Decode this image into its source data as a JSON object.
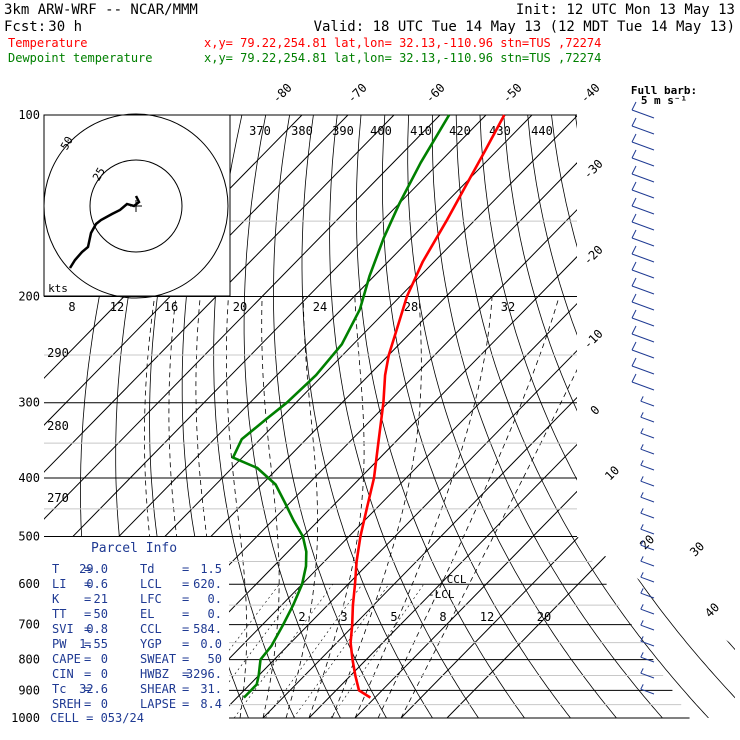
{
  "header": {
    "model": "3km ARW-WRF -- NCAR/MMM",
    "init": "Init: 12 UTC Mon 13 May 13",
    "fcst_label": "Fcst:",
    "fcst_value": "30 h",
    "valid": "Valid: 18 UTC Tue 14 May 13 (12 MDT Tue 14 May 13)",
    "temp_label": "Temperature",
    "dew_label": "Dewpoint temperature",
    "temp_loc": "x,y= 79.22,254.81   lat,lon= 32.13,-110.96  stn=TUS ,72274",
    "dew_loc": "x,y= 79.22,254.81   lat,lon= 32.13,-110.96  stn=TUS ,72274",
    "barb_key_1": "Full barb:",
    "barb_key_2": "5 m s⁻¹"
  },
  "colors": {
    "temperature": "#ff0000",
    "dewpoint": "#008000",
    "wind": "#1f3a93",
    "hodograph": "#000000"
  },
  "chart_data": {
    "type": "line",
    "chart_kind": "skew-T log-p sounding",
    "y_scale": "log",
    "ylim": [
      1000,
      100
    ],
    "pressure_ticks": [
      "100",
      "200",
      "300",
      "400",
      "500",
      "600",
      "700",
      "800",
      "900",
      "1000"
    ],
    "pressure_ticks_values": [
      100,
      200,
      300,
      400,
      500,
      600,
      700,
      800,
      900,
      1000
    ],
    "isotherm_labels": [
      "-80",
      "-70",
      "-60",
      "-50",
      "-40",
      "-30",
      "-20",
      "-10",
      "0",
      "10",
      "20",
      "30",
      "40"
    ],
    "isotherm_values": [
      -80,
      -70,
      -60,
      -50,
      -40,
      -30,
      -20,
      -10,
      0,
      10,
      20,
      30,
      40
    ],
    "theta_labels": [
      "290",
      "280",
      "270"
    ],
    "theta_values": [
      290,
      280,
      270
    ],
    "mixing_ratio_labels": [
      "2",
      "3",
      "5",
      "8",
      "12",
      "20"
    ],
    "mixing_ratio_values": [
      2,
      3,
      5,
      8,
      12,
      20
    ],
    "series": [
      {
        "name": "Temperature",
        "color": "#ff0000",
        "points": [
          {
            "p": 925,
            "t": 29.0
          },
          {
            "p": 900,
            "t": 25.0
          },
          {
            "p": 850,
            "t": 21.0
          },
          {
            "p": 800,
            "t": 17.0
          },
          {
            "p": 750,
            "t": 13.0
          },
          {
            "p": 700,
            "t": 9.5
          },
          {
            "p": 650,
            "t": 5.5
          },
          {
            "p": 600,
            "t": 1.5
          },
          {
            "p": 550,
            "t": -3.0
          },
          {
            "p": 500,
            "t": -7.5
          },
          {
            "p": 450,
            "t": -12.0
          },
          {
            "p": 400,
            "t": -17.0
          },
          {
            "p": 350,
            "t": -23.5
          },
          {
            "p": 300,
            "t": -31.0
          },
          {
            "p": 270,
            "t": -36.5
          },
          {
            "p": 250,
            "t": -40.0
          },
          {
            "p": 225,
            "t": -44.0
          },
          {
            "p": 200,
            "t": -48.5
          },
          {
            "p": 175,
            "t": -52.5
          },
          {
            "p": 150,
            "t": -56.0
          },
          {
            "p": 130,
            "t": -59.5
          },
          {
            "p": 115,
            "t": -62.5
          },
          {
            "p": 100,
            "t": -66.0
          }
        ]
      },
      {
        "name": "Dewpoint temperature",
        "color": "#008000",
        "points": [
          {
            "p": 925,
            "t": 1.5
          },
          {
            "p": 880,
            "t": 1.5
          },
          {
            "p": 850,
            "t": 0.0
          },
          {
            "p": 800,
            "t": -3.0
          },
          {
            "p": 760,
            "t": -3.5
          },
          {
            "p": 700,
            "t": -5.5
          },
          {
            "p": 650,
            "t": -7.5
          },
          {
            "p": 600,
            "t": -10.0
          },
          {
            "p": 560,
            "t": -13.0
          },
          {
            "p": 530,
            "t": -16.0
          },
          {
            "p": 500,
            "t": -20.0
          },
          {
            "p": 470,
            "t": -25.5
          },
          {
            "p": 440,
            "t": -31.0
          },
          {
            "p": 410,
            "t": -37.0
          },
          {
            "p": 385,
            "t": -44.5
          },
          {
            "p": 370,
            "t": -52.0
          },
          {
            "p": 345,
            "t": -54.0
          },
          {
            "p": 320,
            "t": -53.0
          },
          {
            "p": 300,
            "t": -52.0
          },
          {
            "p": 270,
            "t": -51.5
          },
          {
            "p": 240,
            "t": -52.5
          },
          {
            "p": 210,
            "t": -56.0
          },
          {
            "p": 185,
            "t": -61.0
          },
          {
            "p": 160,
            "t": -66.0
          },
          {
            "p": 140,
            "t": -70.0
          },
          {
            "p": 120,
            "t": -74.0
          },
          {
            "p": 100,
            "t": -78.0
          }
        ]
      }
    ],
    "annotations": [
      "CCL",
      "LCL"
    ],
    "hodograph": {
      "unit_label": "kts",
      "ring_labels": [
        "50",
        "25"
      ],
      "speed_ticks": [
        "8",
        "12",
        "16",
        "20",
        "24",
        "28",
        "32"
      ],
      "top_ticks": [
        "370",
        "380",
        "390",
        "400",
        "410",
        "420",
        "430",
        "440"
      ]
    }
  },
  "parcel_info": {
    "title": "Parcel Info",
    "rows": [
      [
        "T",
        "=",
        "29.0",
        "Td",
        "=",
        "1.5"
      ],
      [
        "LI",
        "=",
        "0.6",
        "LCL",
        "=",
        "620."
      ],
      [
        "K",
        "=",
        "21",
        "LFC",
        "=",
        "0."
      ],
      [
        "TT",
        "=",
        "50",
        "EL",
        "=",
        "0."
      ],
      [
        "SVI",
        "=",
        "0.8",
        "CCL",
        "=",
        "584."
      ],
      [
        "PW",
        "=",
        "1.55",
        "YGP",
        "=",
        "0.0"
      ],
      [
        "CAPE",
        "=",
        "0",
        "SWEAT",
        "=",
        "50"
      ],
      [
        "CIN",
        "=",
        "0",
        "HWBZ",
        "=",
        "3296."
      ],
      [
        "Tc",
        "=",
        "32.6",
        "SHEAR",
        "=",
        "31."
      ],
      [
        "SREH",
        "=",
        "0",
        "LAPSE",
        "=",
        "8.4"
      ]
    ],
    "cell_label": "CELL = 053/24"
  }
}
